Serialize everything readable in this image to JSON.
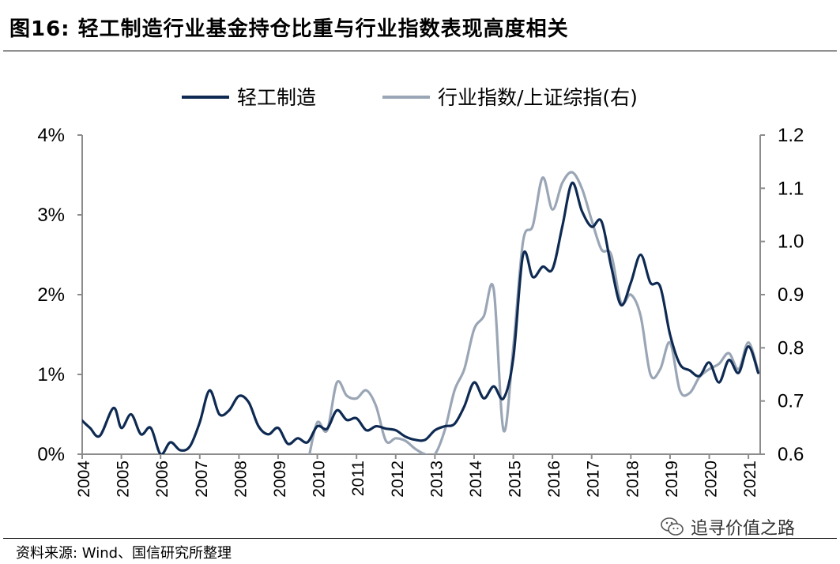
{
  "title": "图16:  轻工制造行业基金持仓比重与行业指数表现高度相关",
  "source": "资料来源: Wind、国信研究所整理",
  "watermark": {
    "text": "追寻价值之路",
    "icon": "wechat-icon"
  },
  "colors": {
    "series_primary": "#0e2a52",
    "series_secondary": "#9aa6b5",
    "axis": "#8c8c8c"
  },
  "chart_data": {
    "type": "line",
    "title": "图16:  轻工制造行业基金持仓比重与行业指数表现高度相关",
    "legend_position": "top",
    "grid": false,
    "x_tick_labels": [
      "2004",
      "2005",
      "2006",
      "2007",
      "2008",
      "2009",
      "2010",
      "2011",
      "2012",
      "2013",
      "2014",
      "2015",
      "2016",
      "2017",
      "2018",
      "2019",
      "2020",
      "2021"
    ],
    "x_range": [
      2004.0,
      2021.3
    ],
    "y_left": {
      "range": [
        0,
        0.04
      ],
      "ticks": [
        0,
        0.01,
        0.02,
        0.03,
        0.04
      ],
      "tick_labels": [
        "0%",
        "1%",
        "2%",
        "3%",
        "4%"
      ]
    },
    "y_right": {
      "range": [
        0.6,
        1.2
      ],
      "ticks": [
        0.6,
        0.7,
        0.8,
        0.9,
        1.0,
        1.1,
        1.2
      ],
      "tick_labels": [
        "0.6",
        "0.7",
        "0.8",
        "0.9",
        "1.0",
        "1.1",
        "1.2"
      ]
    },
    "series": [
      {
        "name": "轻工制造",
        "axis": "left",
        "points": [
          [
            2004.0,
            0.0042
          ],
          [
            2004.2,
            0.0033
          ],
          [
            2004.45,
            0.0023
          ],
          [
            2004.8,
            0.0058
          ],
          [
            2005.0,
            0.0033
          ],
          [
            2005.25,
            0.005
          ],
          [
            2005.5,
            0.0025
          ],
          [
            2005.75,
            0.0033
          ],
          [
            2006.0,
            0.0
          ],
          [
            2006.25,
            0.0015
          ],
          [
            2006.5,
            0.0005
          ],
          [
            2006.75,
            0.001
          ],
          [
            2007.0,
            0.004
          ],
          [
            2007.25,
            0.008
          ],
          [
            2007.5,
            0.005
          ],
          [
            2007.75,
            0.0055
          ],
          [
            2008.0,
            0.0073
          ],
          [
            2008.25,
            0.0065
          ],
          [
            2008.5,
            0.0035
          ],
          [
            2008.75,
            0.0025
          ],
          [
            2009.0,
            0.0033
          ],
          [
            2009.25,
            0.0013
          ],
          [
            2009.5,
            0.002
          ],
          [
            2009.75,
            0.0015
          ],
          [
            2010.0,
            0.0035
          ],
          [
            2010.25,
            0.0032
          ],
          [
            2010.5,
            0.0055
          ],
          [
            2010.75,
            0.0043
          ],
          [
            2011.0,
            0.0045
          ],
          [
            2011.25,
            0.003
          ],
          [
            2011.5,
            0.0035
          ],
          [
            2011.75,
            0.0032
          ],
          [
            2012.0,
            0.003
          ],
          [
            2012.25,
            0.0022
          ],
          [
            2012.5,
            0.0018
          ],
          [
            2012.75,
            0.0018
          ],
          [
            2013.0,
            0.003
          ],
          [
            2013.25,
            0.0035
          ],
          [
            2013.5,
            0.0038
          ],
          [
            2013.75,
            0.006
          ],
          [
            2014.0,
            0.009
          ],
          [
            2014.25,
            0.007
          ],
          [
            2014.5,
            0.0085
          ],
          [
            2014.75,
            0.007
          ],
          [
            2015.0,
            0.012
          ],
          [
            2015.25,
            0.025
          ],
          [
            2015.5,
            0.0222
          ],
          [
            2015.75,
            0.0235
          ],
          [
            2016.0,
            0.0232
          ],
          [
            2016.25,
            0.0285
          ],
          [
            2016.5,
            0.034
          ],
          [
            2016.75,
            0.0305
          ],
          [
            2017.0,
            0.0285
          ],
          [
            2017.25,
            0.0292
          ],
          [
            2017.5,
            0.0235
          ],
          [
            2017.75,
            0.0187
          ],
          [
            2018.0,
            0.0215
          ],
          [
            2018.25,
            0.025
          ],
          [
            2018.5,
            0.0215
          ],
          [
            2018.75,
            0.021
          ],
          [
            2019.0,
            0.015
          ],
          [
            2019.25,
            0.0113
          ],
          [
            2019.5,
            0.0105
          ],
          [
            2019.75,
            0.0098
          ],
          [
            2020.0,
            0.0115
          ],
          [
            2020.25,
            0.009
          ],
          [
            2020.5,
            0.0118
          ],
          [
            2020.75,
            0.0102
          ],
          [
            2021.0,
            0.0135
          ],
          [
            2021.25,
            0.0102
          ]
        ]
      },
      {
        "name": "行业指数/上证综指(右)",
        "axis": "right",
        "points": [
          [
            2009.8,
            0.6
          ],
          [
            2010.0,
            0.66
          ],
          [
            2010.25,
            0.645
          ],
          [
            2010.5,
            0.735
          ],
          [
            2010.75,
            0.71
          ],
          [
            2011.0,
            0.705
          ],
          [
            2011.25,
            0.72
          ],
          [
            2011.5,
            0.69
          ],
          [
            2011.75,
            0.625
          ],
          [
            2012.0,
            0.63
          ],
          [
            2012.25,
            0.625
          ],
          [
            2012.5,
            0.61
          ],
          [
            2012.75,
            0.6
          ],
          [
            2013.0,
            0.6
          ],
          [
            2013.25,
            0.645
          ],
          [
            2013.5,
            0.72
          ],
          [
            2013.75,
            0.76
          ],
          [
            2014.0,
            0.835
          ],
          [
            2014.25,
            0.86
          ],
          [
            2014.5,
            0.91
          ],
          [
            2014.75,
            0.645
          ],
          [
            2015.0,
            0.8
          ],
          [
            2015.25,
            1.0
          ],
          [
            2015.5,
            1.03
          ],
          [
            2015.75,
            1.12
          ],
          [
            2016.0,
            1.06
          ],
          [
            2016.25,
            1.11
          ],
          [
            2016.5,
            1.13
          ],
          [
            2016.75,
            1.1
          ],
          [
            2017.0,
            1.04
          ],
          [
            2017.25,
            0.985
          ],
          [
            2017.5,
            0.975
          ],
          [
            2017.75,
            0.885
          ],
          [
            2018.0,
            0.9
          ],
          [
            2018.25,
            0.86
          ],
          [
            2018.5,
            0.75
          ],
          [
            2018.75,
            0.76
          ],
          [
            2019.0,
            0.81
          ],
          [
            2019.25,
            0.72
          ],
          [
            2019.5,
            0.715
          ],
          [
            2019.75,
            0.745
          ],
          [
            2020.0,
            0.76
          ],
          [
            2020.25,
            0.77
          ],
          [
            2020.5,
            0.79
          ],
          [
            2020.75,
            0.76
          ],
          [
            2021.0,
            0.81
          ],
          [
            2021.25,
            0.755
          ]
        ]
      }
    ]
  }
}
